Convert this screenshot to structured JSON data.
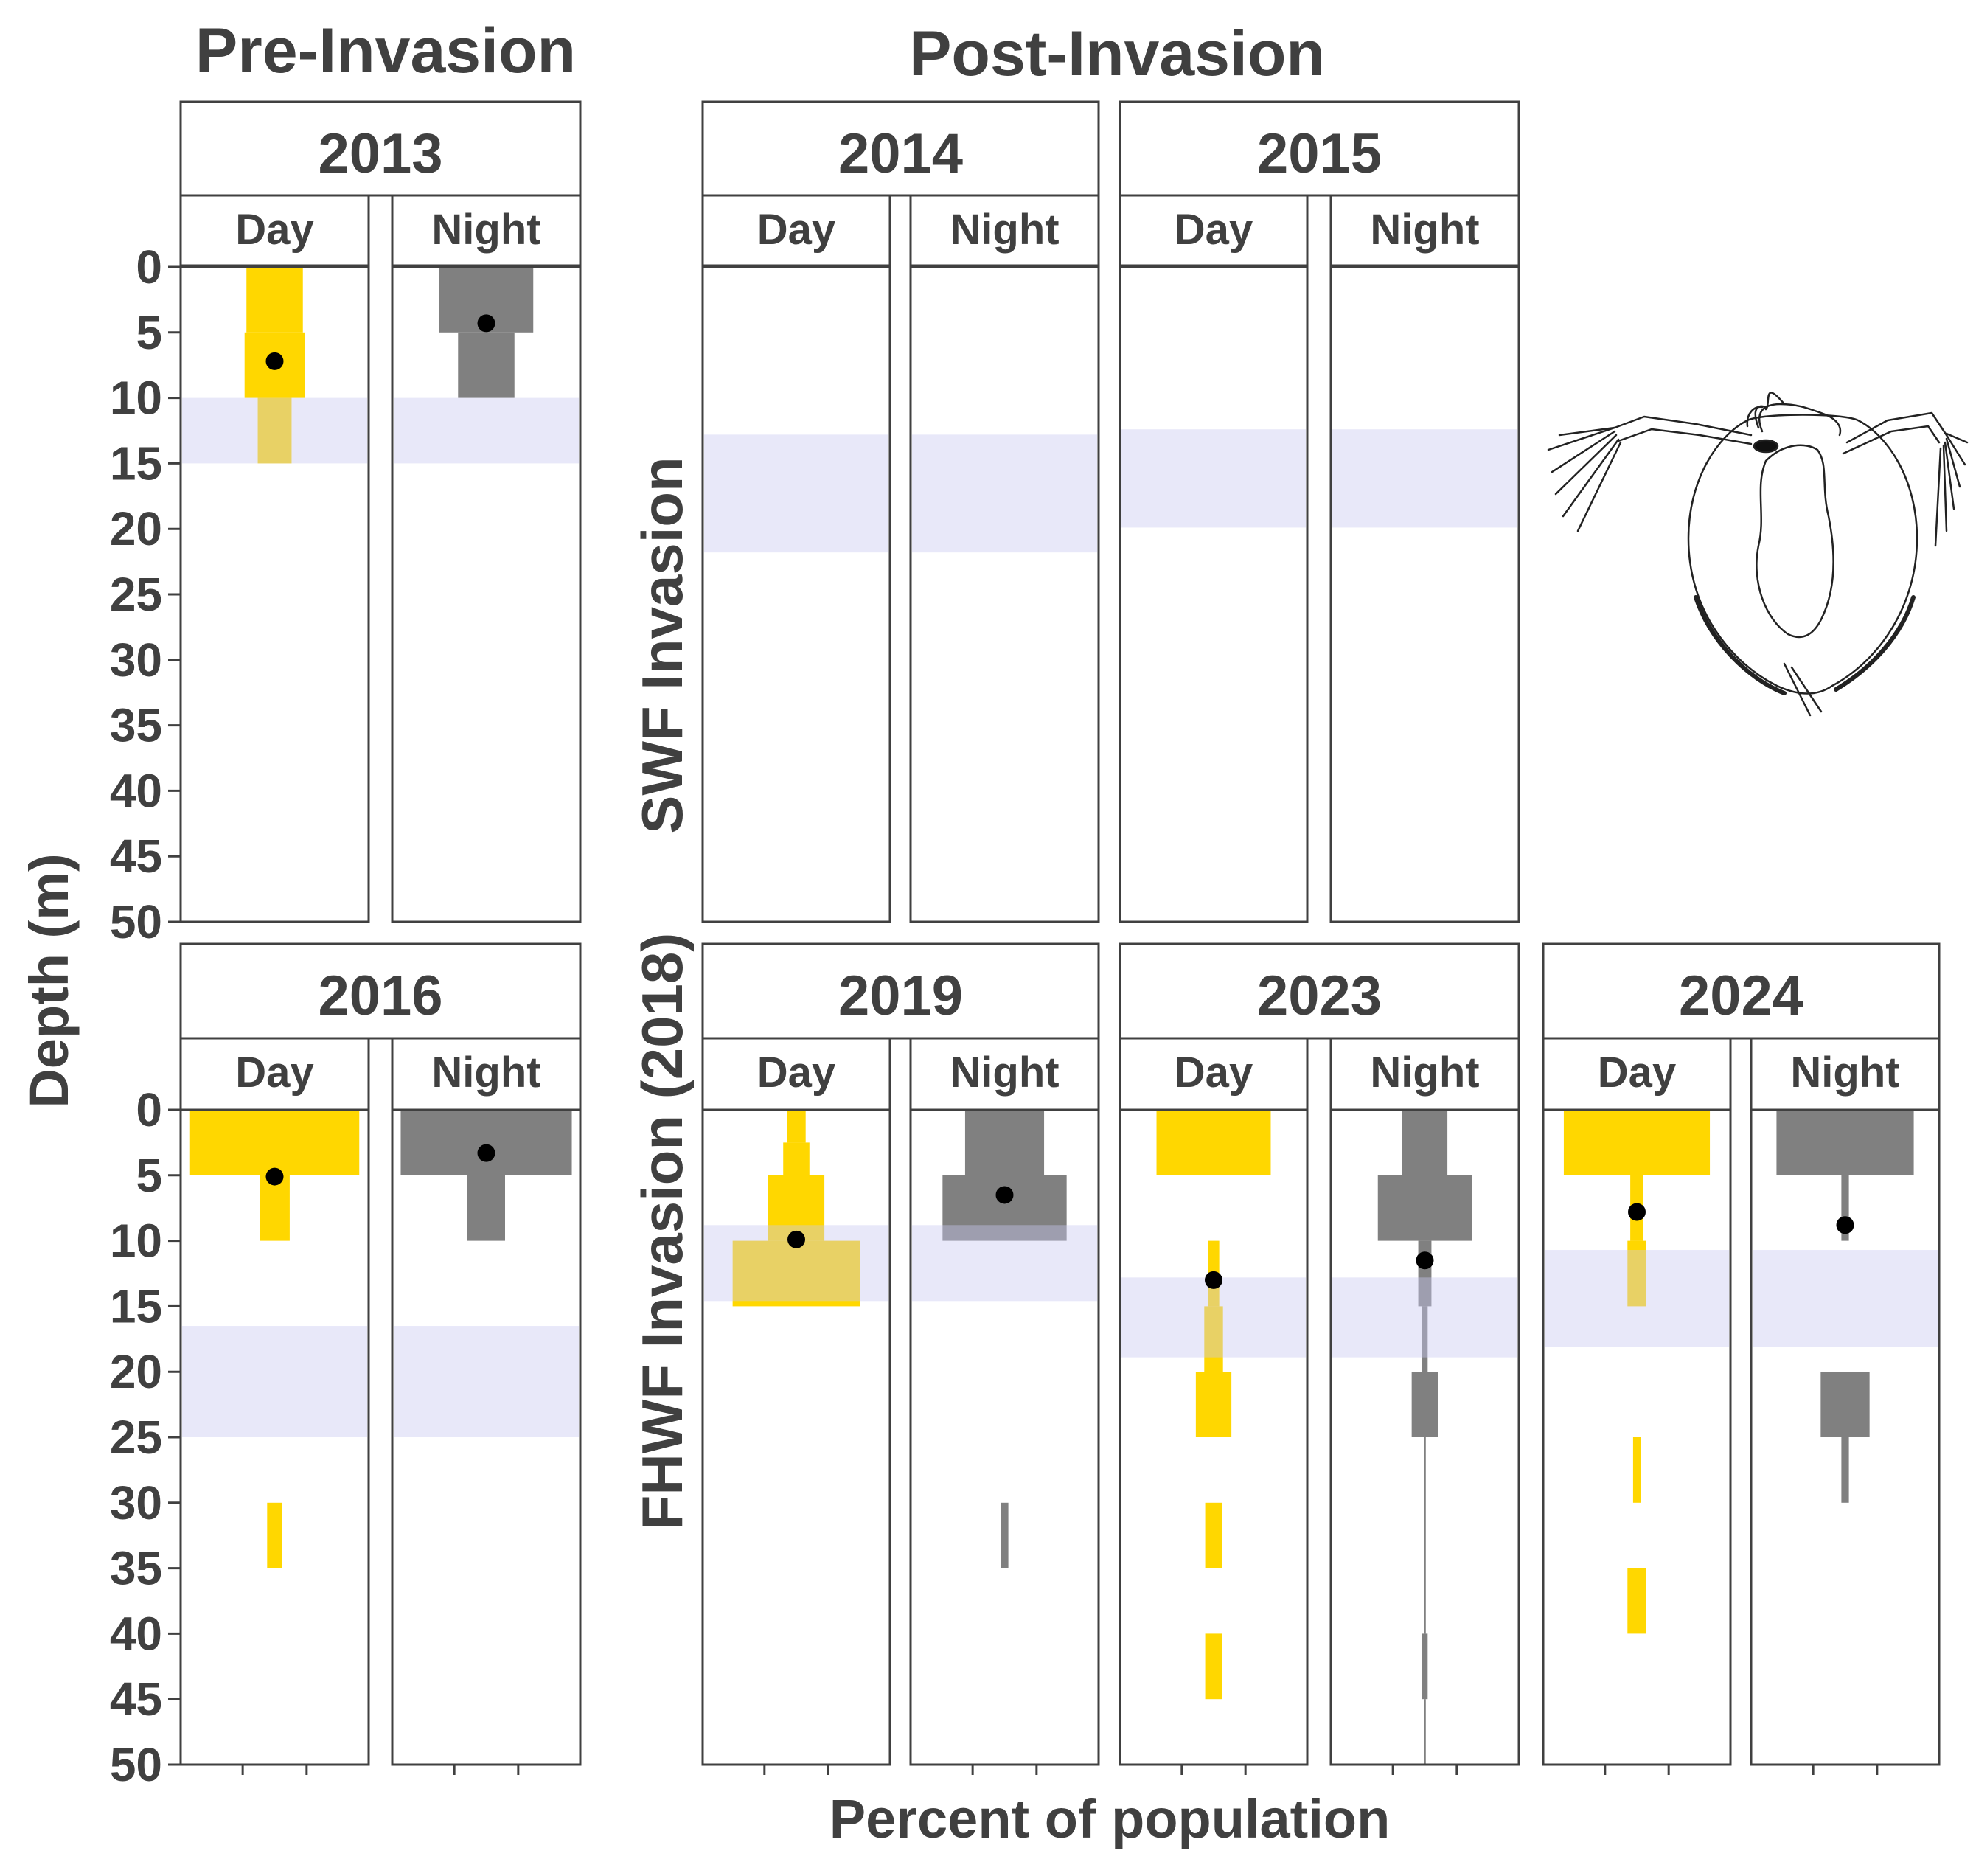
{
  "chart_data": {
    "type": "bar",
    "description_free": true,
    "headers": {
      "left": "Pre-Invasion",
      "right": "Post-Invasion"
    },
    "ylabel": "Depth (m)",
    "xlabel": "Percent of population",
    "ylim": [
      0,
      50
    ],
    "yticks": [
      "0",
      "5",
      "10",
      "15",
      "20",
      "25",
      "30",
      "35",
      "40",
      "45",
      "50"
    ],
    "row_labels": [
      "SWF Invasion",
      "FHWF Invasion (2018)"
    ],
    "sub_labels": [
      "Day",
      "Night"
    ],
    "colors": {
      "day": "#FFD700",
      "night": "#808080",
      "band": "#E8E8FA",
      "point": "#000000",
      "frame": "#404040"
    },
    "panels": [
      {
        "year": "2013",
        "band": [
          10,
          15
        ],
        "day": {
          "bars": [
            [
              0,
              5,
              30
            ],
            [
              5,
              10,
              32
            ],
            [
              10,
              15,
              18
            ]
          ],
          "mean": 7.2
        },
        "night": {
          "bars": [
            [
              0,
              5,
              50
            ],
            [
              5,
              10,
              30
            ]
          ],
          "mean": 4.3
        }
      },
      {
        "year": "2014",
        "band": [
          12.8,
          21.8
        ],
        "day": {
          "bars": [],
          "mean": null
        },
        "night": {
          "bars": [],
          "mean": null
        }
      },
      {
        "year": "2015",
        "band": [
          12.4,
          19.9
        ],
        "day": {
          "bars": [],
          "mean": null
        },
        "night": {
          "bars": [],
          "mean": null
        }
      },
      {
        "year": "2016",
        "band": [
          16.5,
          25
        ],
        "day": {
          "bars": [
            [
              0,
              5,
              90
            ],
            [
              5,
              10,
              16
            ],
            [
              30,
              35,
              8
            ]
          ],
          "mean": 5.1
        },
        "night": {
          "bars": [
            [
              0,
              5,
              91
            ],
            [
              5,
              10,
              20
            ]
          ],
          "mean": 3.3
        }
      },
      {
        "year": "2019",
        "band": [
          8.8,
          14.6
        ],
        "day": {
          "bars": [
            [
              0,
              2.5,
              10
            ],
            [
              2.5,
              5,
              14
            ],
            [
              5,
              10,
              30
            ],
            [
              10,
              15,
              68
            ]
          ],
          "mean": 9.9
        },
        "night": {
          "bars": [
            [
              0,
              5,
              42
            ],
            [
              5,
              10,
              66
            ],
            [
              30,
              35,
              4
            ]
          ],
          "mean": 6.5
        }
      },
      {
        "year": "2023",
        "band": [
          12.8,
          18.9
        ],
        "day": {
          "bars": [
            [
              0,
              5,
              61
            ],
            [
              10,
              15,
              6
            ],
            [
              15,
              20,
              10
            ],
            [
              20,
              25,
              19
            ],
            [
              30,
              35,
              9
            ],
            [
              40,
              45,
              9
            ]
          ],
          "mean": 13
        },
        "night": {
          "bars": [
            [
              0,
              5,
              24
            ],
            [
              5,
              10,
              50
            ],
            [
              10,
              15,
              7
            ],
            [
              15,
              20,
              3
            ],
            [
              20,
              25,
              14
            ],
            [
              25,
              40,
              1
            ],
            [
              40,
              45,
              3
            ],
            [
              45,
              50,
              1
            ]
          ],
          "mean": 11.5
        }
      },
      {
        "year": "2024",
        "band": [
          10.7,
          18.1
        ],
        "day": {
          "bars": [
            [
              0,
              5,
              78
            ],
            [
              5,
              10,
              7
            ],
            [
              10,
              15,
              10
            ],
            [
              25,
              30,
              4
            ],
            [
              35,
              40,
              10
            ]
          ],
          "mean": 7.8
        },
        "night": {
          "bars": [
            [
              0,
              5,
              73
            ],
            [
              5,
              10,
              4
            ],
            [
              20,
              25,
              26
            ],
            [
              25,
              30,
              4
            ]
          ],
          "mean": 8.8
        }
      }
    ]
  }
}
